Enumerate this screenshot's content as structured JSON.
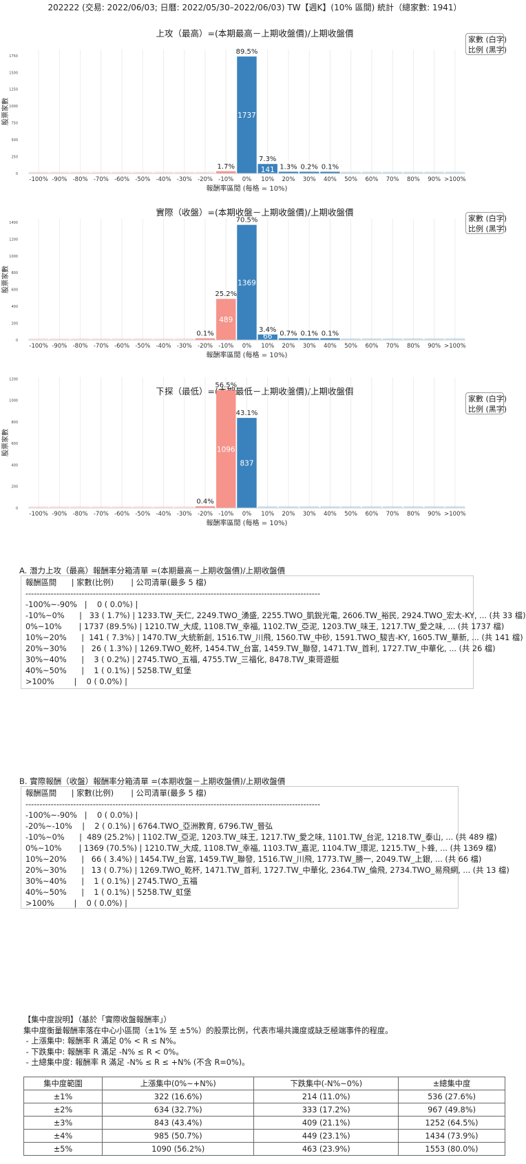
{
  "header": {
    "title": "202222 (交易: 2022/06/03; 日曆: 2022/05/30–2022/06/03) TW【週K】(10% 區間) 統計（總家數: 1941）"
  },
  "legend": {
    "line1": "家數 (白字)",
    "line2": "比例 (黑字)"
  },
  "colors": {
    "positive": "#3a82bd",
    "negative": "#f6938a",
    "grid": "#ececec"
  },
  "chart_data": [
    {
      "type": "bar",
      "title": "上攻（最高）=(本期最高－上期收盤價)/上期收盤價",
      "xlabel": "報酬率區間 (每格 = 10%)",
      "ylabel": "股票家數",
      "categories": [
        "-100%",
        "-90%",
        "-80%",
        "-70%",
        "-60%",
        "-50%",
        "-40%",
        "-30%",
        "-20%",
        "-10%",
        "0%",
        "10%",
        "20%",
        "30%",
        "40%",
        "50%",
        "60%",
        "70%",
        "80%",
        "90%",
        ">100%"
      ],
      "values": [
        0,
        0,
        0,
        0,
        0,
        0,
        0,
        0,
        0,
        33,
        1737,
        141,
        26,
        3,
        1,
        0,
        0,
        0,
        0,
        0,
        0
      ],
      "pct_labels": [
        "",
        "",
        "",
        "",
        "",
        "",
        "",
        "",
        "",
        "1.7%",
        "89.5%",
        "7.3%",
        "1.3%",
        "0.2%",
        "0.1%",
        "",
        "",
        "",
        "",
        "",
        ""
      ],
      "count_labels": [
        "",
        "",
        "",
        "",
        "",
        "",
        "",
        "",
        "",
        "",
        "1737",
        "141",
        "",
        "",
        "",
        "",
        "",
        "",
        "",
        "",
        ""
      ],
      "yticks": [
        0,
        250,
        500,
        750,
        1000,
        1250,
        1500,
        1750
      ],
      "ylim": [
        0,
        1840
      ]
    },
    {
      "type": "bar",
      "title": "實際（收盤）=(本期收盤－上期收盤價)/上期收盤價",
      "xlabel": "報酬率區間 (每格 = 10%)",
      "ylabel": "股票家數",
      "categories": [
        "-100%",
        "-90%",
        "-80%",
        "-70%",
        "-60%",
        "-50%",
        "-40%",
        "-30%",
        "-20%",
        "-10%",
        "0%",
        "10%",
        "20%",
        "30%",
        "40%",
        "50%",
        "60%",
        "70%",
        "80%",
        "90%",
        ">100%"
      ],
      "values": [
        0,
        0,
        0,
        0,
        0,
        0,
        0,
        0,
        2,
        489,
        1369,
        66,
        13,
        1,
        1,
        0,
        0,
        0,
        0,
        0,
        0
      ],
      "pct_labels": [
        "",
        "",
        "",
        "",
        "",
        "",
        "",
        "",
        "0.1%",
        "25.2%",
        "70.5%",
        "3.4%",
        "0.7%",
        "0.1%",
        "0.1%",
        "",
        "",
        "",
        "",
        "",
        ""
      ],
      "count_labels": [
        "",
        "",
        "",
        "",
        "",
        "",
        "",
        "",
        "",
        "489",
        "1369",
        "66",
        "",
        "",
        "",
        "",
        "",
        "",
        "",
        "",
        ""
      ],
      "yticks": [
        0,
        200,
        400,
        600,
        800,
        1000,
        1200,
        1400
      ],
      "ylim": [
        0,
        1440
      ]
    },
    {
      "type": "bar",
      "title": "下探（最低）=(本期最低－上期收盤價)/上期收盤價",
      "xlabel": "報酬率區間 (每格 = 10%)",
      "ylabel": "股票家數",
      "categories": [
        "-100%",
        "-90%",
        "-80%",
        "-70%",
        "-60%",
        "-50%",
        "-40%",
        "-30%",
        "-20%",
        "-10%",
        "0%",
        "10%",
        "20%",
        "30%",
        "40%",
        "50%",
        "60%",
        "70%",
        "80%",
        "90%",
        ">100%"
      ],
      "values": [
        0,
        0,
        0,
        0,
        0,
        0,
        0,
        0,
        8,
        1096,
        837,
        0,
        0,
        0,
        0,
        0,
        0,
        0,
        0,
        0,
        0
      ],
      "pct_labels": [
        "",
        "",
        "",
        "",
        "",
        "",
        "",
        "",
        "0.4%",
        "56.5%",
        "43.1%",
        "",
        "",
        "",
        "",
        "",
        "",
        "",
        "",
        "",
        ""
      ],
      "count_labels": [
        "",
        "",
        "",
        "",
        "",
        "",
        "",
        "",
        "",
        "1096",
        "837",
        "",
        "",
        "",
        "",
        "",
        "",
        "",
        "",
        "",
        ""
      ],
      "yticks": [
        0,
        200,
        400,
        600,
        800,
        1000,
        1200
      ],
      "ylim": [
        0,
        1215
      ]
    }
  ],
  "listA": {
    "title": "A. 潛力上攻（最高）報酬率分箱清單 =(本期最高－上期收盤價)/上期收盤價",
    "lines": [
      "報酬區間      | 家數(比例)       | 公司清單(最多 5 檔)",
      "---------------------------------------------------------------------------------------------------------",
      "-100%~-90%   |    0 ( 0.0%) |",
      "-10%~0%      |   33 ( 1.7%) | 1233.TW_天仁, 2249.TWO_湧盛, 2255.TWO_凱銳光電, 2606.TW_裕民, 2924.TWO_宏太-KY, ... (共 33 檔)",
      "0%~10%       | 1737 (89.5%) | 1210.TW_大成, 1108.TW_幸福, 1102.TW_亞泥, 1203.TW_味王, 1217.TW_愛之味, ... (共 1737 檔)",
      "10%~20%      |  141 ( 7.3%) | 1470.TW_大統新創, 1516.TW_川飛, 1560.TW_中砂, 1591.TWO_駿吉-KY, 1605.TW_華新, ... (共 141 檔)",
      "20%~30%      |   26 ( 1.3%) | 1269.TWO_乾杯, 1454.TW_台富, 1459.TW_聯發, 1471.TW_首利, 1727.TW_中華化, ... (共 26 檔)",
      "30%~40%      |    3 ( 0.2%) | 2745.TWO_五福, 4755.TW_三福化, 8478.TW_東哥遊艇",
      "40%~50%      |    1 ( 0.1%) | 5258.TW_虹堡",
      ">100%        |    0 ( 0.0%) |"
    ]
  },
  "listB": {
    "title": "B. 實際報酬（收盤）報酬率分箱清單 =(本期收盤－上期收盤價)/上期收盤價",
    "lines": [
      "報酬區間      | 家數(比例)       | 公司清單(最多 5 檔)",
      "---------------------------------------------------------------------------------------------------------",
      "-100%~-90%   |    0 ( 0.0%) |",
      "-20%~-10%    |    2 ( 0.1%) | 6764.TWO_亞洲教育, 6796.TW_晉弘",
      "-10%~0%      |  489 (25.2%) | 1102.TW_亞泥, 1203.TW_味王, 1217.TW_愛之味, 1101.TW_台泥, 1218.TW_泰山, ... (共 489 檔)",
      "0%~10%       | 1369 (70.5%) | 1210.TW_大成, 1108.TW_幸福, 1103.TW_嘉泥, 1104.TW_環泥, 1215.TW_卜蜂, ... (共 1369 檔)",
      "10%~20%      |   66 ( 3.4%) | 1454.TW_台富, 1459.TW_聯發, 1516.TW_川飛, 1773.TW_勝一, 2049.TW_上銀, ... (共 66 檔)",
      "20%~30%      |   13 ( 0.7%) | 1269.TWO_乾杯, 1471.TW_首利, 1727.TW_中華化, 2364.TW_倫飛, 2734.TWO_易飛網, ... (共 13 檔)",
      "30%~40%      |    1 ( 0.1%) | 2745.TWO_五福",
      "40%~50%      |    1 ( 0.1%) | 5258.TW_虹堡",
      ">100%        |    0 ( 0.0%) |"
    ]
  },
  "notes": {
    "lines": [
      "【集中度說明】（基於「實際收盤報酬率」）",
      "集中度衡量報酬率落在中心小區間（±1% 至 ±5%）的股票比例，代表市場共識度或缺乏極端事件的程度。",
      " - 上漲集中: 報酬率 R 滿足 0% < R ≤ N%。",
      " - 下跌集中: 報酬率 R 滿足 -N% ≤ R < 0%。",
      " - 土總集中度: 報酬率 R 滿足 -N% ≤ R ≤ +N% (不含 R=0%)。"
    ]
  },
  "table": {
    "headers": [
      "集中度範圍",
      "上漲集中(0%~+N%)",
      "下跌集中(-N%~0%)",
      "±總集中度"
    ],
    "rows": [
      [
        "±1%",
        "322 (16.6%)",
        "214 (11.0%)",
        "536 (27.6%)"
      ],
      [
        "±2%",
        "634 (32.7%)",
        "333 (17.2%)",
        "967 (49.8%)"
      ],
      [
        "±3%",
        "843 (43.4%)",
        "409 (21.1%)",
        "1252 (64.5%)"
      ],
      [
        "±4%",
        "985 (50.7%)",
        "449 (23.1%)",
        "1434 (73.9%)"
      ],
      [
        "±5%",
        "1090 (56.2%)",
        "463 (23.9%)",
        "1553 (80.0%)"
      ]
    ]
  }
}
